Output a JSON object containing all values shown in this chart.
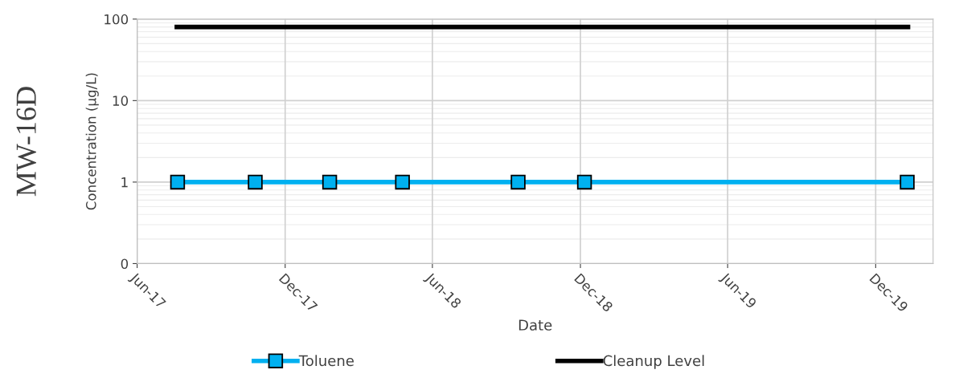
{
  "chart_data": {
    "type": "line",
    "title": "MW-16D",
    "xlabel": "Date",
    "ylabel": "Concentration (µg/L)",
    "series": [
      {
        "name": "Toluene",
        "color": "#00b0f0",
        "marker": "square",
        "x": [
          "2017-07-21",
          "2017-10-25",
          "2018-01-25",
          "2018-04-25",
          "2018-09-15",
          "2018-12-06",
          "2020-01-09"
        ],
        "values": [
          1,
          1,
          1,
          1,
          1,
          1,
          1
        ]
      },
      {
        "name": "Cleanup Level",
        "color": "#000000",
        "marker": "none",
        "x": [
          "2017-07-20",
          "2020-01-10"
        ],
        "values": [
          80,
          80
        ]
      }
    ],
    "log": "y",
    "ylim": [
      0.1,
      100
    ],
    "yticks": [
      {
        "value": 0.1,
        "label": "0"
      },
      1,
      10,
      100
    ],
    "xlim": [
      "2017-06-01",
      "2020-02-10"
    ],
    "xticks": [
      {
        "value": "2017-06-01",
        "label": "Jun-17"
      },
      {
        "value": "2017-12-01",
        "label": "Dec-17"
      },
      {
        "value": "2018-06-01",
        "label": "Jun-18"
      },
      {
        "value": "2018-12-01",
        "label": "Dec-18"
      },
      {
        "value": "2019-06-01",
        "label": "Jun-19"
      },
      {
        "value": "2019-12-01",
        "label": "Dec-19"
      }
    ],
    "grid": true,
    "legend": "bottom"
  }
}
